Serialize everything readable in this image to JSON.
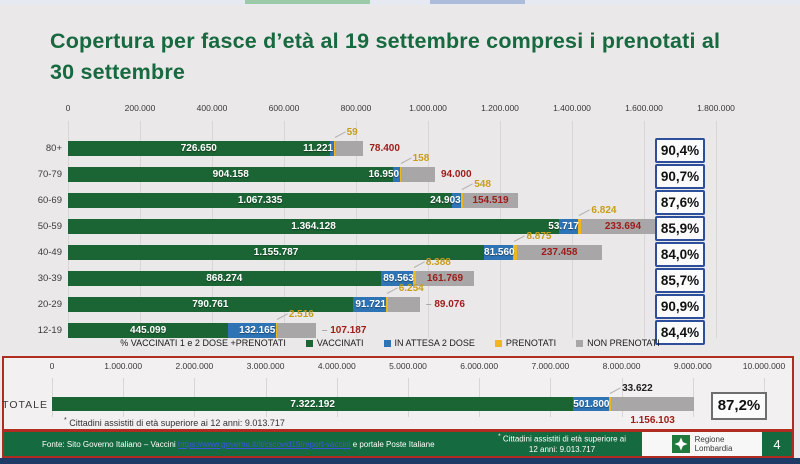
{
  "title": "Copertura per fasce d’età al 19 settembre compresi i prenotati al 30 settembre",
  "page_number": "4",
  "colors": {
    "title_green": "#17693f",
    "bar_green": "#1b6434",
    "bar_blue": "#2e74b5",
    "bar_yellow": "#edb81e",
    "bar_gray": "#a8a6a6",
    "red_label": "#9e1b18",
    "pct_border_blue": "#2c4e9b",
    "frame_red": "#b02c20",
    "footer_green": "#156a40",
    "strip_navy": "#1e3a66",
    "link_blue": "#3f55e0"
  },
  "chart_data": [
    {
      "type": "bar",
      "orientation": "horizontal",
      "title": "Copertura per fasce d’età al 19 settembre compresi i prenotati al 30 settembre",
      "categories": [
        "80+",
        "70-79",
        "60-69",
        "50-59",
        "40-49",
        "30-39",
        "20-29",
        "12-19"
      ],
      "series": [
        {
          "name": "VACCINATI",
          "color": "#1b6434",
          "values": [
            726650,
            904158,
            1067335,
            1364128,
            1155787,
            868274,
            790761,
            445099
          ]
        },
        {
          "name": "IN ATTESA 2 DOSE",
          "color": "#2e74b5",
          "values": [
            11221,
            16950,
            24903,
            53717,
            81560,
            89563,
            91721,
            132165
          ]
        },
        {
          "name": "PRENOTATI",
          "color": "#edb81e",
          "values": [
            59,
            158,
            548,
            6824,
            8875,
            8388,
            6254,
            2516
          ]
        },
        {
          "name": "NON PRENOTATI",
          "color": "#a8a6a6",
          "values": [
            78400,
            94000,
            154519,
            233694,
            237458,
            161769,
            89076,
            107187
          ]
        }
      ],
      "percent_labels": [
        "90,4%",
        "90,7%",
        "87,6%",
        "85,9%",
        "84,0%",
        "85,7%",
        "90,9%",
        "84,4%"
      ],
      "axis": {
        "min": 0,
        "max": 1800000,
        "step": 200000
      },
      "grid": true,
      "legend_position": "bottom",
      "np_label_pos": [
        "out",
        "out",
        "in",
        "in",
        "in",
        "in",
        "out-dash",
        "out-dash"
      ],
      "prenotati_label_pos": "callout",
      "pct_box_style": "blue"
    },
    {
      "type": "bar",
      "orientation": "horizontal",
      "title": "Totale",
      "categories": [
        "TOTALE"
      ],
      "series": [
        {
          "name": "VACCINATI",
          "color": "#1b6434",
          "values": [
            7322192
          ]
        },
        {
          "name": "IN ATTESA 2 DOSE",
          "color": "#2e74b5",
          "values": [
            501800
          ]
        },
        {
          "name": "PRENOTATI",
          "color": "#edb81e",
          "values": [
            33622
          ]
        },
        {
          "name": "NON PRENOTATI",
          "color": "#a8a6a6",
          "values": [
            1156103
          ]
        }
      ],
      "percent_labels": [
        "87,2%"
      ],
      "axis": {
        "min": 0,
        "max": 10000000,
        "step": 1000000
      },
      "grid": true,
      "np_label_pos": [
        "below"
      ],
      "prenotati_label_pos": "above",
      "pct_box_style": "gray"
    }
  ],
  "legend": {
    "items": [
      {
        "label": "% VACCINATI 1 e 2 DOSE +PRENOTATI",
        "swatch": null
      },
      {
        "label": "VACCINATI",
        "swatch": "#1b6434"
      },
      {
        "label": "IN ATTESA 2 DOSE",
        "swatch": "#2e74b5"
      },
      {
        "label": "PRENOTATI",
        "swatch": "#edb81e"
      },
      {
        "label": "NON PRENOTATI",
        "swatch": "#a8a6a6"
      }
    ]
  },
  "footnote": {
    "marker": "*",
    "text": "Cittadini  assistiti di età superiore ai 12 anni: 9.013.717"
  },
  "footer": {
    "source_prefix": "Fonte: Sito Governo Italiano – Vaccini",
    "source_link": "https://www.governo.it/it/cscovid19/report-vaccini",
    "source_suffix": "e portale Poste Italiane",
    "note_marker": "*",
    "note_line1": "Cittadini  assistiti di età superiore ai",
    "note_line2": "12 anni: 9.013.717",
    "logo_line1": "Regione",
    "logo_line2": "Lombardia"
  }
}
